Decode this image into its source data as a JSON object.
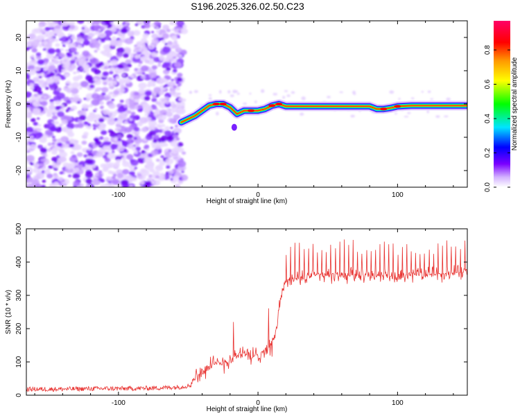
{
  "title": "S196.2025.326.02.50.C23",
  "chart_data": [
    {
      "type": "heatmap",
      "xlabel": "Height of straight line (km)",
      "ylabel": "Frequency (Hz)",
      "xlim": [
        -166,
        150
      ],
      "ylim": [
        -25,
        25
      ],
      "x_ticks": [
        -100,
        0,
        100
      ],
      "y_ticks": [
        -20,
        -10,
        0,
        10,
        20
      ],
      "colorbar": {
        "label": "Normalized spectral amplitude",
        "range": [
          0,
          0.97
        ],
        "ticks": [
          0.0,
          0.2,
          0.4,
          0.6,
          0.8
        ]
      },
      "noise_region_x": [
        -166,
        -55
      ],
      "ridge": {
        "x": [
          -55,
          -50,
          -45,
          -40,
          -35,
          -30,
          -25,
          -20,
          -15,
          -10,
          -5,
          0,
          5,
          10,
          15,
          20,
          40,
          60,
          80,
          85,
          90,
          95,
          100,
          110,
          130,
          150
        ],
        "y": [
          -5.5,
          -4.5,
          -3.5,
          -2,
          -0.5,
          0,
          0,
          -1,
          -3,
          -2,
          -2,
          -2,
          -1.5,
          -0.5,
          0,
          -0.7,
          -0.7,
          -0.7,
          -0.7,
          -1.5,
          -1.5,
          -1.2,
          -0.7,
          -0.5,
          -0.5,
          -0.5
        ]
      }
    },
    {
      "type": "line",
      "xlabel": "Height of straight line (km)",
      "ylabel": "SNR (10 * v/v)",
      "xlim": [
        -166,
        150
      ],
      "ylim": [
        0,
        500
      ],
      "x_ticks": [
        -100,
        0,
        100
      ],
      "y_ticks": [
        0,
        100,
        200,
        300,
        400,
        500
      ],
      "color": "#e8312f",
      "series": [
        {
          "name": "SNR",
          "x": [
            -166,
            -150,
            -130,
            -110,
            -90,
            -70,
            -55,
            -48,
            -45,
            -40,
            -35,
            -30,
            -25,
            -20,
            -15,
            -10,
            -5,
            0,
            5,
            10,
            13,
            16,
            18,
            20,
            25,
            30,
            40,
            60,
            80,
            100,
            110,
            130,
            150
          ],
          "values": [
            18,
            18,
            19,
            20,
            20,
            22,
            25,
            30,
            55,
            70,
            80,
            95,
            100,
            105,
            120,
            130,
            110,
            125,
            135,
            150,
            190,
            290,
            320,
            340,
            350,
            355,
            360,
            360,
            360,
            355,
            360,
            365,
            370
          ]
        }
      ],
      "spikes": {
        "x_start": 20,
        "x_end": 150,
        "spacing": 3.2,
        "peak": 470
      }
    }
  ]
}
